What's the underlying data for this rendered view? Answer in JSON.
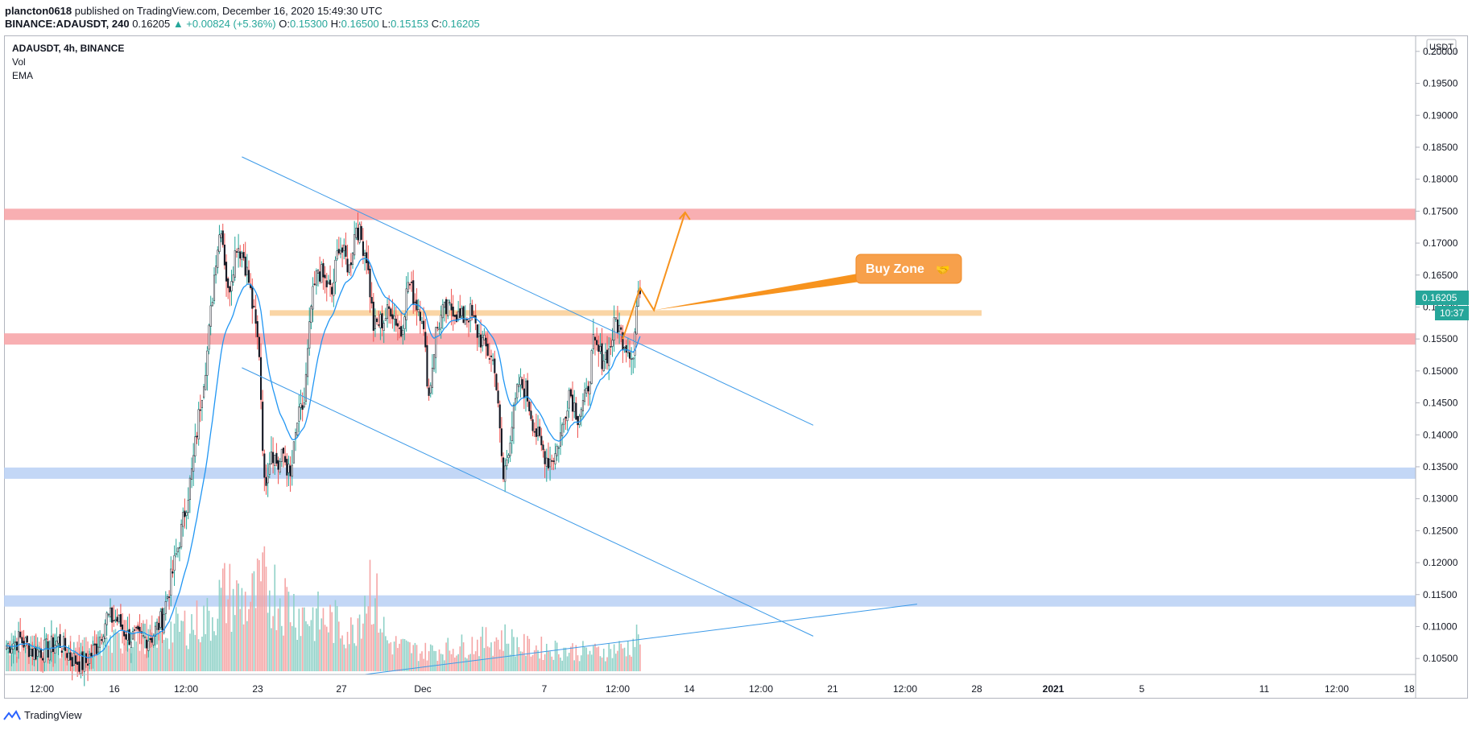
{
  "header": {
    "author": "plancton0618",
    "published_text": "published on TradingView.com, December 16, 2020 15:49:30 UTC",
    "symbol": "BINANCE:ADAUSDT, 240",
    "last": "0.16205",
    "change": "▲ +0.00824 (+5.36%)",
    "o_label": "O:",
    "o_value": "0.15300",
    "h_label": "H:",
    "h_value": "0.16500",
    "l_label": "L:",
    "l_value": "0.15153",
    "c_label": "C:",
    "c_value": "0.16205"
  },
  "legend": {
    "title": "ADAUSDT, 4h, BINANCE",
    "vol": "Vol",
    "ema": "EMA"
  },
  "footer": {
    "brand": "TradingView"
  },
  "colors": {
    "up": "#26a69a",
    "down": "#ef5350",
    "up_vol": "#8fd1c7",
    "down_vol": "#f5a5a5",
    "ema": "#2196f3",
    "trend": "#3c9ae8",
    "resistance": "#f7a1a5",
    "support": "#b8d0f5",
    "buy_zone_line": "#fad5a5",
    "arrow": "#f7931e",
    "price_tag": "#26a69a"
  },
  "chart_data": {
    "type": "candlestick",
    "symbol": "ADAUSDT",
    "interval": "4h",
    "exchange": "BINANCE",
    "currency": "USDT",
    "current_price": "0.16205",
    "countdown": "10:37",
    "y_ticks": [
      "0.20000",
      "0.19500",
      "0.19000",
      "0.18500",
      "0.18000",
      "0.17500",
      "0.17000",
      "0.16500",
      "0.16000",
      "0.15500",
      "0.15000",
      "0.14500",
      "0.14000",
      "0.13500",
      "0.13000",
      "0.12500",
      "0.12000",
      "0.11500",
      "0.11000",
      "0.10500"
    ],
    "ylim": [
      0.1025,
      0.2025
    ],
    "x_ticks": [
      {
        "label": "12:00",
        "bold": false
      },
      {
        "label": "16",
        "bold": false
      },
      {
        "label": "12:00",
        "bold": false
      },
      {
        "label": "23",
        "bold": false
      },
      {
        "label": "27",
        "bold": false
      },
      {
        "label": "Dec",
        "bold": false
      },
      {
        "label": "7",
        "bold": false
      },
      {
        "label": "12:00",
        "bold": false
      },
      {
        "label": "14",
        "bold": false
      },
      {
        "label": "12:00",
        "bold": false
      },
      {
        "label": "21",
        "bold": false
      },
      {
        "label": "12:00",
        "bold": false
      },
      {
        "label": "28",
        "bold": false
      },
      {
        "label": "2021",
        "bold": true
      },
      {
        "label": "5",
        "bold": false
      },
      {
        "label": "11",
        "bold": false
      },
      {
        "label": "12:00",
        "bold": false
      },
      {
        "label": "18",
        "bold": false
      }
    ],
    "zones": [
      {
        "type": "resistance",
        "price": 0.1745
      },
      {
        "type": "resistance",
        "price": 0.155
      },
      {
        "type": "support",
        "price": 0.134
      },
      {
        "type": "support",
        "price": 0.114
      },
      {
        "type": "buy-zone",
        "price": 0.159
      }
    ],
    "annotation": {
      "label": "Buy Zone",
      "emoji": "🤝"
    },
    "keypoints": [
      [
        0,
        0.107
      ],
      [
        8,
        0.108
      ],
      [
        16,
        0.106
      ],
      [
        24,
        0.1065
      ],
      [
        30,
        0.1078
      ],
      [
        38,
        0.105
      ],
      [
        45,
        0.104
      ],
      [
        52,
        0.107
      ],
      [
        58,
        0.1115
      ],
      [
        64,
        0.111
      ],
      [
        70,
        0.1085
      ],
      [
        77,
        0.108
      ],
      [
        84,
        0.1085
      ],
      [
        90,
        0.1112
      ],
      [
        96,
        0.1185
      ],
      [
        101,
        0.125
      ],
      [
        107,
        0.134
      ],
      [
        112,
        0.145
      ],
      [
        116,
        0.153
      ],
      [
        121,
        0.168
      ],
      [
        124,
        0.173
      ],
      [
        128,
        0.162
      ],
      [
        133,
        0.17
      ],
      [
        137,
        0.168
      ],
      [
        140,
        0.164
      ],
      [
        146,
        0.153
      ],
      [
        149,
        0.132
      ],
      [
        153,
        0.138
      ],
      [
        157,
        0.135
      ],
      [
        160,
        0.137
      ],
      [
        164,
        0.133
      ],
      [
        168,
        0.142
      ],
      [
        172,
        0.145
      ],
      [
        176,
        0.16
      ],
      [
        180,
        0.166
      ],
      [
        184,
        0.164
      ],
      [
        188,
        0.162
      ],
      [
        192,
        0.17
      ],
      [
        198,
        0.166
      ],
      [
        202,
        0.173
      ],
      [
        208,
        0.168
      ],
      [
        212,
        0.157
      ],
      [
        218,
        0.158
      ],
      [
        222,
        0.16
      ],
      [
        228,
        0.156
      ],
      [
        232,
        0.164
      ],
      [
        236,
        0.161
      ],
      [
        240,
        0.159
      ],
      [
        244,
        0.146
      ],
      [
        248,
        0.156
      ],
      [
        252,
        0.159
      ],
      [
        258,
        0.16
      ],
      [
        262,
        0.158
      ],
      [
        268,
        0.159
      ],
      [
        272,
        0.156
      ],
      [
        276,
        0.154
      ],
      [
        282,
        0.151
      ],
      [
        287,
        0.133
      ],
      [
        291,
        0.14
      ],
      [
        296,
        0.148
      ],
      [
        300,
        0.147
      ],
      [
        305,
        0.141
      ],
      [
        309,
        0.138
      ],
      [
        313,
        0.136
      ],
      [
        317,
        0.137
      ],
      [
        321,
        0.141
      ],
      [
        325,
        0.147
      ],
      [
        330,
        0.143
      ],
      [
        335,
        0.146
      ],
      [
        339,
        0.154
      ],
      [
        344,
        0.152
      ],
      [
        348,
        0.153
      ],
      [
        352,
        0.158
      ],
      [
        356,
        0.155
      ],
      [
        360,
        0.1535
      ],
      [
        362,
        0.152
      ],
      [
        364,
        0.16
      ],
      [
        366,
        0.162
      ]
    ],
    "volume_peaks": [
      [
        0,
        0.3
      ],
      [
        50,
        0.25
      ],
      [
        100,
        0.45
      ],
      [
        118,
        0.55
      ],
      [
        125,
        0.8
      ],
      [
        140,
        0.7
      ],
      [
        150,
        0.9
      ],
      [
        170,
        0.6
      ],
      [
        190,
        0.5
      ],
      [
        200,
        0.4
      ],
      [
        210,
        0.95
      ],
      [
        220,
        0.3
      ],
      [
        240,
        0.2
      ],
      [
        260,
        0.25
      ],
      [
        287,
        0.35
      ],
      [
        300,
        0.25
      ],
      [
        340,
        0.2
      ],
      [
        360,
        0.25
      ],
      [
        366,
        0.4
      ]
    ],
    "ema_period_bars": 20
  }
}
